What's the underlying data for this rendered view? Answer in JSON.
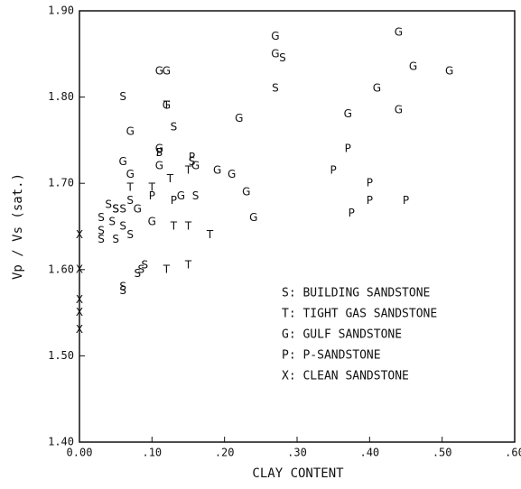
{
  "chart_data": {
    "type": "scatter",
    "x_label": "CLAY CONTENT",
    "y_label": "Vp / Vs (sat.)",
    "xlim": [
      0,
      0.6
    ],
    "ylim": [
      1.4,
      1.9
    ],
    "xticks": [
      {
        "value": 0,
        "label": "0.00"
      },
      {
        "value": 0.1,
        "label": ".10"
      },
      {
        "value": 0.2,
        "label": ".20"
      },
      {
        "value": 0.3,
        "label": ".30"
      },
      {
        "value": 0.4,
        "label": ".40"
      },
      {
        "value": 0.5,
        "label": ".50"
      },
      {
        "value": 0.6,
        "label": ".60"
      }
    ],
    "yticks": [
      {
        "value": 1.4,
        "label": "1.40"
      },
      {
        "value": 1.5,
        "label": "1.50"
      },
      {
        "value": 1.6,
        "label": "1.60"
      },
      {
        "value": 1.7,
        "label": "1.70"
      },
      {
        "value": 1.8,
        "label": "1.80"
      },
      {
        "value": 1.9,
        "label": "1.90"
      }
    ],
    "legend": "lower right",
    "series": [
      {
        "name": "S: BUILDING SANDSTONE",
        "marker": "S",
        "color": "#111",
        "x": [
          0.03,
          0.03,
          0.03,
          0.04,
          0.045,
          0.05,
          0.06,
          0.06,
          0.05,
          0.07,
          0.06,
          0.06,
          0.08,
          0.085,
          0.09,
          0.07,
          0.11,
          0.13,
          0.155,
          0.16,
          0.06,
          0.27,
          0.28,
          0.05
        ],
        "values": [
          1.66,
          1.645,
          1.635,
          1.675,
          1.655,
          1.67,
          1.67,
          1.65,
          1.635,
          1.64,
          1.58,
          1.575,
          1.595,
          1.6,
          1.605,
          1.68,
          1.735,
          1.765,
          1.725,
          1.685,
          1.8,
          1.81,
          1.845,
          1.67
        ]
      },
      {
        "name": "T: TIGHT GAS SANDSTONE",
        "marker": "T",
        "color": "#111",
        "x": [
          0.07,
          0.1,
          0.12,
          0.125,
          0.13,
          0.15,
          0.15,
          0.18,
          0.12,
          0.15
        ],
        "values": [
          1.695,
          1.695,
          1.79,
          1.705,
          1.65,
          1.65,
          1.715,
          1.64,
          1.6,
          1.605
        ]
      },
      {
        "name": "G: GULF SANDSTONE",
        "marker": "G",
        "color": "#111",
        "x": [
          0.06,
          0.07,
          0.07,
          0.08,
          0.1,
          0.11,
          0.12,
          0.12,
          0.11,
          0.11,
          0.14,
          0.19,
          0.21,
          0.22,
          0.23,
          0.24,
          0.27,
          0.27,
          0.37,
          0.41,
          0.44,
          0.44,
          0.46,
          0.51,
          0.16
        ],
        "values": [
          1.725,
          1.71,
          1.76,
          1.67,
          1.655,
          1.83,
          1.83,
          1.79,
          1.74,
          1.72,
          1.685,
          1.715,
          1.71,
          1.775,
          1.69,
          1.66,
          1.87,
          1.85,
          1.78,
          1.81,
          1.875,
          1.785,
          1.835,
          1.83,
          1.72
        ]
      },
      {
        "name": "P: P-SANDSTONE",
        "marker": "P",
        "color": "#111",
        "x": [
          0.11,
          0.13,
          0.155,
          0.1,
          0.35,
          0.37,
          0.375,
          0.4,
          0.4,
          0.45
        ],
        "values": [
          1.735,
          1.68,
          1.73,
          1.685,
          1.715,
          1.74,
          1.665,
          1.7,
          1.68,
          1.68
        ]
      },
      {
        "name": "X: CLEAN SANDSTONE",
        "marker": "X",
        "color": "#111",
        "x": [
          0,
          0,
          0,
          0,
          0
        ],
        "values": [
          1.64,
          1.6,
          1.565,
          1.55,
          1.53
        ]
      }
    ]
  }
}
